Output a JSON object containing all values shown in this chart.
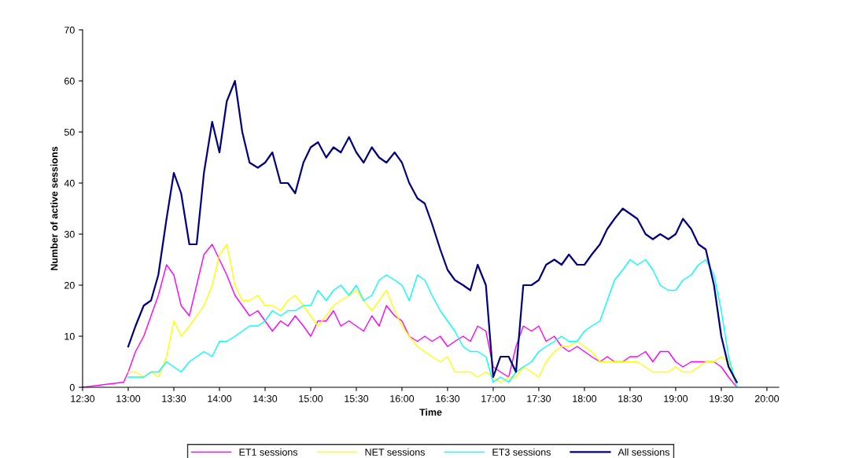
{
  "chart_data": {
    "type": "line",
    "xlabel": "Time",
    "ylabel": "Number of active sessions",
    "x": [
      12.5,
      12.95,
      13.0,
      13.08,
      13.17,
      13.25,
      13.33,
      13.42,
      13.5,
      13.58,
      13.67,
      13.75,
      13.83,
      13.92,
      14.0,
      14.08,
      14.17,
      14.25,
      14.33,
      14.42,
      14.5,
      14.58,
      14.67,
      14.75,
      14.83,
      14.92,
      15.0,
      15.08,
      15.17,
      15.25,
      15.33,
      15.42,
      15.5,
      15.58,
      15.67,
      15.75,
      15.83,
      15.92,
      16.0,
      16.08,
      16.17,
      16.25,
      16.33,
      16.42,
      16.5,
      16.58,
      16.67,
      16.75,
      16.83,
      16.92,
      17.0,
      17.08,
      17.17,
      17.25,
      17.33,
      17.42,
      17.5,
      17.58,
      17.67,
      17.75,
      17.83,
      17.92,
      18.0,
      18.08,
      18.17,
      18.25,
      18.33,
      18.42,
      18.5,
      18.58,
      18.67,
      18.75,
      18.83,
      18.92,
      19.0,
      19.08,
      19.17,
      19.25,
      19.33,
      19.42,
      19.5,
      19.58,
      19.67
    ],
    "series": [
      {
        "name": "ET1 sessions",
        "color": "#ff00ff",
        "values": [
          0,
          1,
          3,
          7,
          10,
          14,
          18,
          24,
          22,
          16,
          14,
          20,
          26,
          28,
          25,
          22,
          18,
          16,
          14,
          15,
          13,
          11,
          13,
          12,
          14,
          12,
          10,
          13,
          13,
          15,
          12,
          13,
          12,
          11,
          14,
          12,
          16,
          14,
          13,
          10,
          9,
          10,
          9,
          10,
          8,
          9,
          10,
          9,
          12,
          11,
          4,
          3,
          2,
          8,
          12,
          11,
          12,
          9,
          10,
          8,
          7,
          8,
          7,
          6,
          5,
          6,
          5,
          5,
          6,
          6,
          7,
          5,
          7,
          7,
          5,
          4,
          5,
          5,
          5,
          5,
          4,
          2,
          0
        ]
      },
      {
        "name": "NET sessions",
        "color": "#ffff00",
        "values": [
          null,
          null,
          3,
          3,
          2,
          3,
          2,
          6,
          13,
          10,
          12,
          14,
          16,
          20,
          26,
          28,
          20,
          17,
          17,
          18,
          16,
          16,
          15,
          17,
          18,
          16,
          14,
          12,
          14,
          16,
          17,
          18,
          19,
          17,
          15,
          17,
          19,
          15,
          12,
          10,
          8,
          7,
          6,
          5,
          6,
          3,
          3,
          3,
          2,
          3,
          2,
          1,
          2,
          2,
          4,
          3,
          2,
          5,
          7,
          8,
          8,
          9,
          8,
          7,
          5,
          5,
          5,
          5,
          5,
          5,
          4,
          3,
          3,
          3,
          4,
          3,
          3,
          4,
          5,
          5,
          6,
          5,
          0
        ]
      },
      {
        "name": "ET3 sessions",
        "color": "#00ffff",
        "values": [
          null,
          null,
          2,
          2,
          2,
          3,
          3,
          5,
          4,
          3,
          5,
          6,
          7,
          6,
          9,
          9,
          10,
          11,
          12,
          12,
          13,
          15,
          14,
          15,
          15,
          16,
          16,
          19,
          17,
          19,
          20,
          18,
          20,
          17,
          18,
          21,
          22,
          21,
          20,
          17,
          22,
          21,
          18,
          15,
          13,
          11,
          8,
          7,
          7,
          6,
          1,
          2,
          1,
          3,
          4,
          5,
          7,
          8,
          9,
          10,
          9,
          9,
          11,
          12,
          13,
          17,
          21,
          23,
          25,
          24,
          25,
          23,
          20,
          19,
          19,
          21,
          22,
          24,
          25,
          22,
          15,
          6,
          0
        ]
      },
      {
        "name": "All sessions",
        "color": "#000080",
        "values": [
          null,
          null,
          8,
          12,
          16,
          17,
          22,
          33,
          42,
          38,
          28,
          28,
          42,
          52,
          46,
          56,
          60,
          50,
          44,
          43,
          44,
          46,
          40,
          40,
          38,
          44,
          47,
          48,
          45,
          47,
          46,
          49,
          46,
          44,
          47,
          45,
          44,
          46,
          44,
          40,
          37,
          36,
          32,
          27,
          23,
          21,
          20,
          19,
          24,
          20,
          2,
          6,
          6,
          3,
          20,
          20,
          21,
          24,
          25,
          24,
          26,
          24,
          24,
          26,
          28,
          31,
          33,
          35,
          34,
          33,
          30,
          29,
          30,
          29,
          30,
          33,
          31,
          28,
          27,
          20,
          10,
          4,
          1
        ]
      }
    ],
    "xlim": [
      12.5,
      20.13
    ],
    "xticks": [
      {
        "value": 12.5,
        "label": "12:30"
      },
      {
        "value": 13,
        "label": "13:00"
      },
      {
        "value": 13.5,
        "label": "13:30"
      },
      {
        "value": 14,
        "label": "14:00"
      },
      {
        "value": 14.5,
        "label": "14:30"
      },
      {
        "value": 15,
        "label": "15:00"
      },
      {
        "value": 15.5,
        "label": "15:30"
      },
      {
        "value": 16,
        "label": "16:00"
      },
      {
        "value": 16.5,
        "label": "16:30"
      },
      {
        "value": 17,
        "label": "17:00"
      },
      {
        "value": 17.5,
        "label": "17:30"
      },
      {
        "value": 18,
        "label": "18:00"
      },
      {
        "value": 18.5,
        "label": "18:30"
      },
      {
        "value": 19,
        "label": "19:00"
      },
      {
        "value": 19.5,
        "label": "19:30"
      },
      {
        "value": 20,
        "label": "20:00"
      }
    ],
    "ylim": [
      0,
      70
    ],
    "yticks": [
      0,
      10,
      20,
      30,
      40,
      50,
      60,
      70
    ],
    "grid": false,
    "legend": "bottom",
    "marker": "none",
    "line_style": "solid"
  }
}
